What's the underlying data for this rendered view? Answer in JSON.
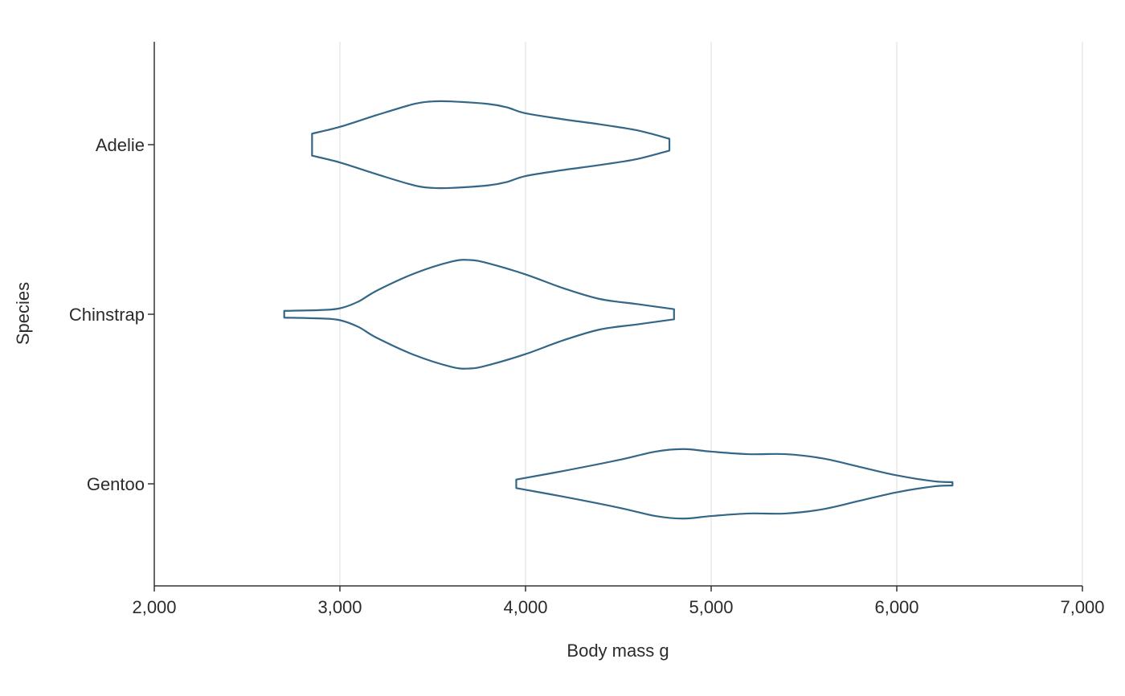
{
  "chart_data": {
    "type": "violin",
    "orientation": "horizontal",
    "xlabel": "Body mass g",
    "ylabel": "Species",
    "xlim": [
      2000,
      7000
    ],
    "xticks": [
      2000,
      3000,
      4000,
      5000,
      6000,
      7000
    ],
    "xtick_labels": [
      "2,000",
      "3,000",
      "4,000",
      "5,000",
      "6,000",
      "7,000"
    ],
    "grid": "vertical",
    "color": "#336687",
    "categories": [
      "Adelie",
      "Chinstrap",
      "Gentoo"
    ],
    "violins": [
      {
        "category": "Adelie",
        "min": 2850,
        "max": 4775,
        "profile": [
          [
            2850,
            0.13
          ],
          [
            3000,
            0.21
          ],
          [
            3200,
            0.35
          ],
          [
            3400,
            0.48
          ],
          [
            3500,
            0.51
          ],
          [
            3600,
            0.51
          ],
          [
            3800,
            0.48
          ],
          [
            3900,
            0.44
          ],
          [
            4000,
            0.37
          ],
          [
            4200,
            0.3
          ],
          [
            4400,
            0.24
          ],
          [
            4600,
            0.17
          ],
          [
            4775,
            0.07
          ]
        ]
      },
      {
        "category": "Chinstrap",
        "min": 2700,
        "max": 4800,
        "profile": [
          [
            2700,
            0.04
          ],
          [
            2900,
            0.05
          ],
          [
            3000,
            0.07
          ],
          [
            3100,
            0.15
          ],
          [
            3200,
            0.28
          ],
          [
            3400,
            0.48
          ],
          [
            3600,
            0.62
          ],
          [
            3700,
            0.64
          ],
          [
            3800,
            0.6
          ],
          [
            4000,
            0.47
          ],
          [
            4200,
            0.31
          ],
          [
            4400,
            0.18
          ],
          [
            4600,
            0.12
          ],
          [
            4800,
            0.06
          ]
        ]
      },
      {
        "category": "Gentoo",
        "min": 3950,
        "max": 6300,
        "profile": [
          [
            3950,
            0.05
          ],
          [
            4200,
            0.15
          ],
          [
            4500,
            0.28
          ],
          [
            4700,
            0.38
          ],
          [
            4850,
            0.41
          ],
          [
            5000,
            0.38
          ],
          [
            5200,
            0.35
          ],
          [
            5400,
            0.35
          ],
          [
            5600,
            0.3
          ],
          [
            5800,
            0.2
          ],
          [
            6000,
            0.1
          ],
          [
            6200,
            0.03
          ],
          [
            6300,
            0.02
          ]
        ]
      }
    ]
  }
}
